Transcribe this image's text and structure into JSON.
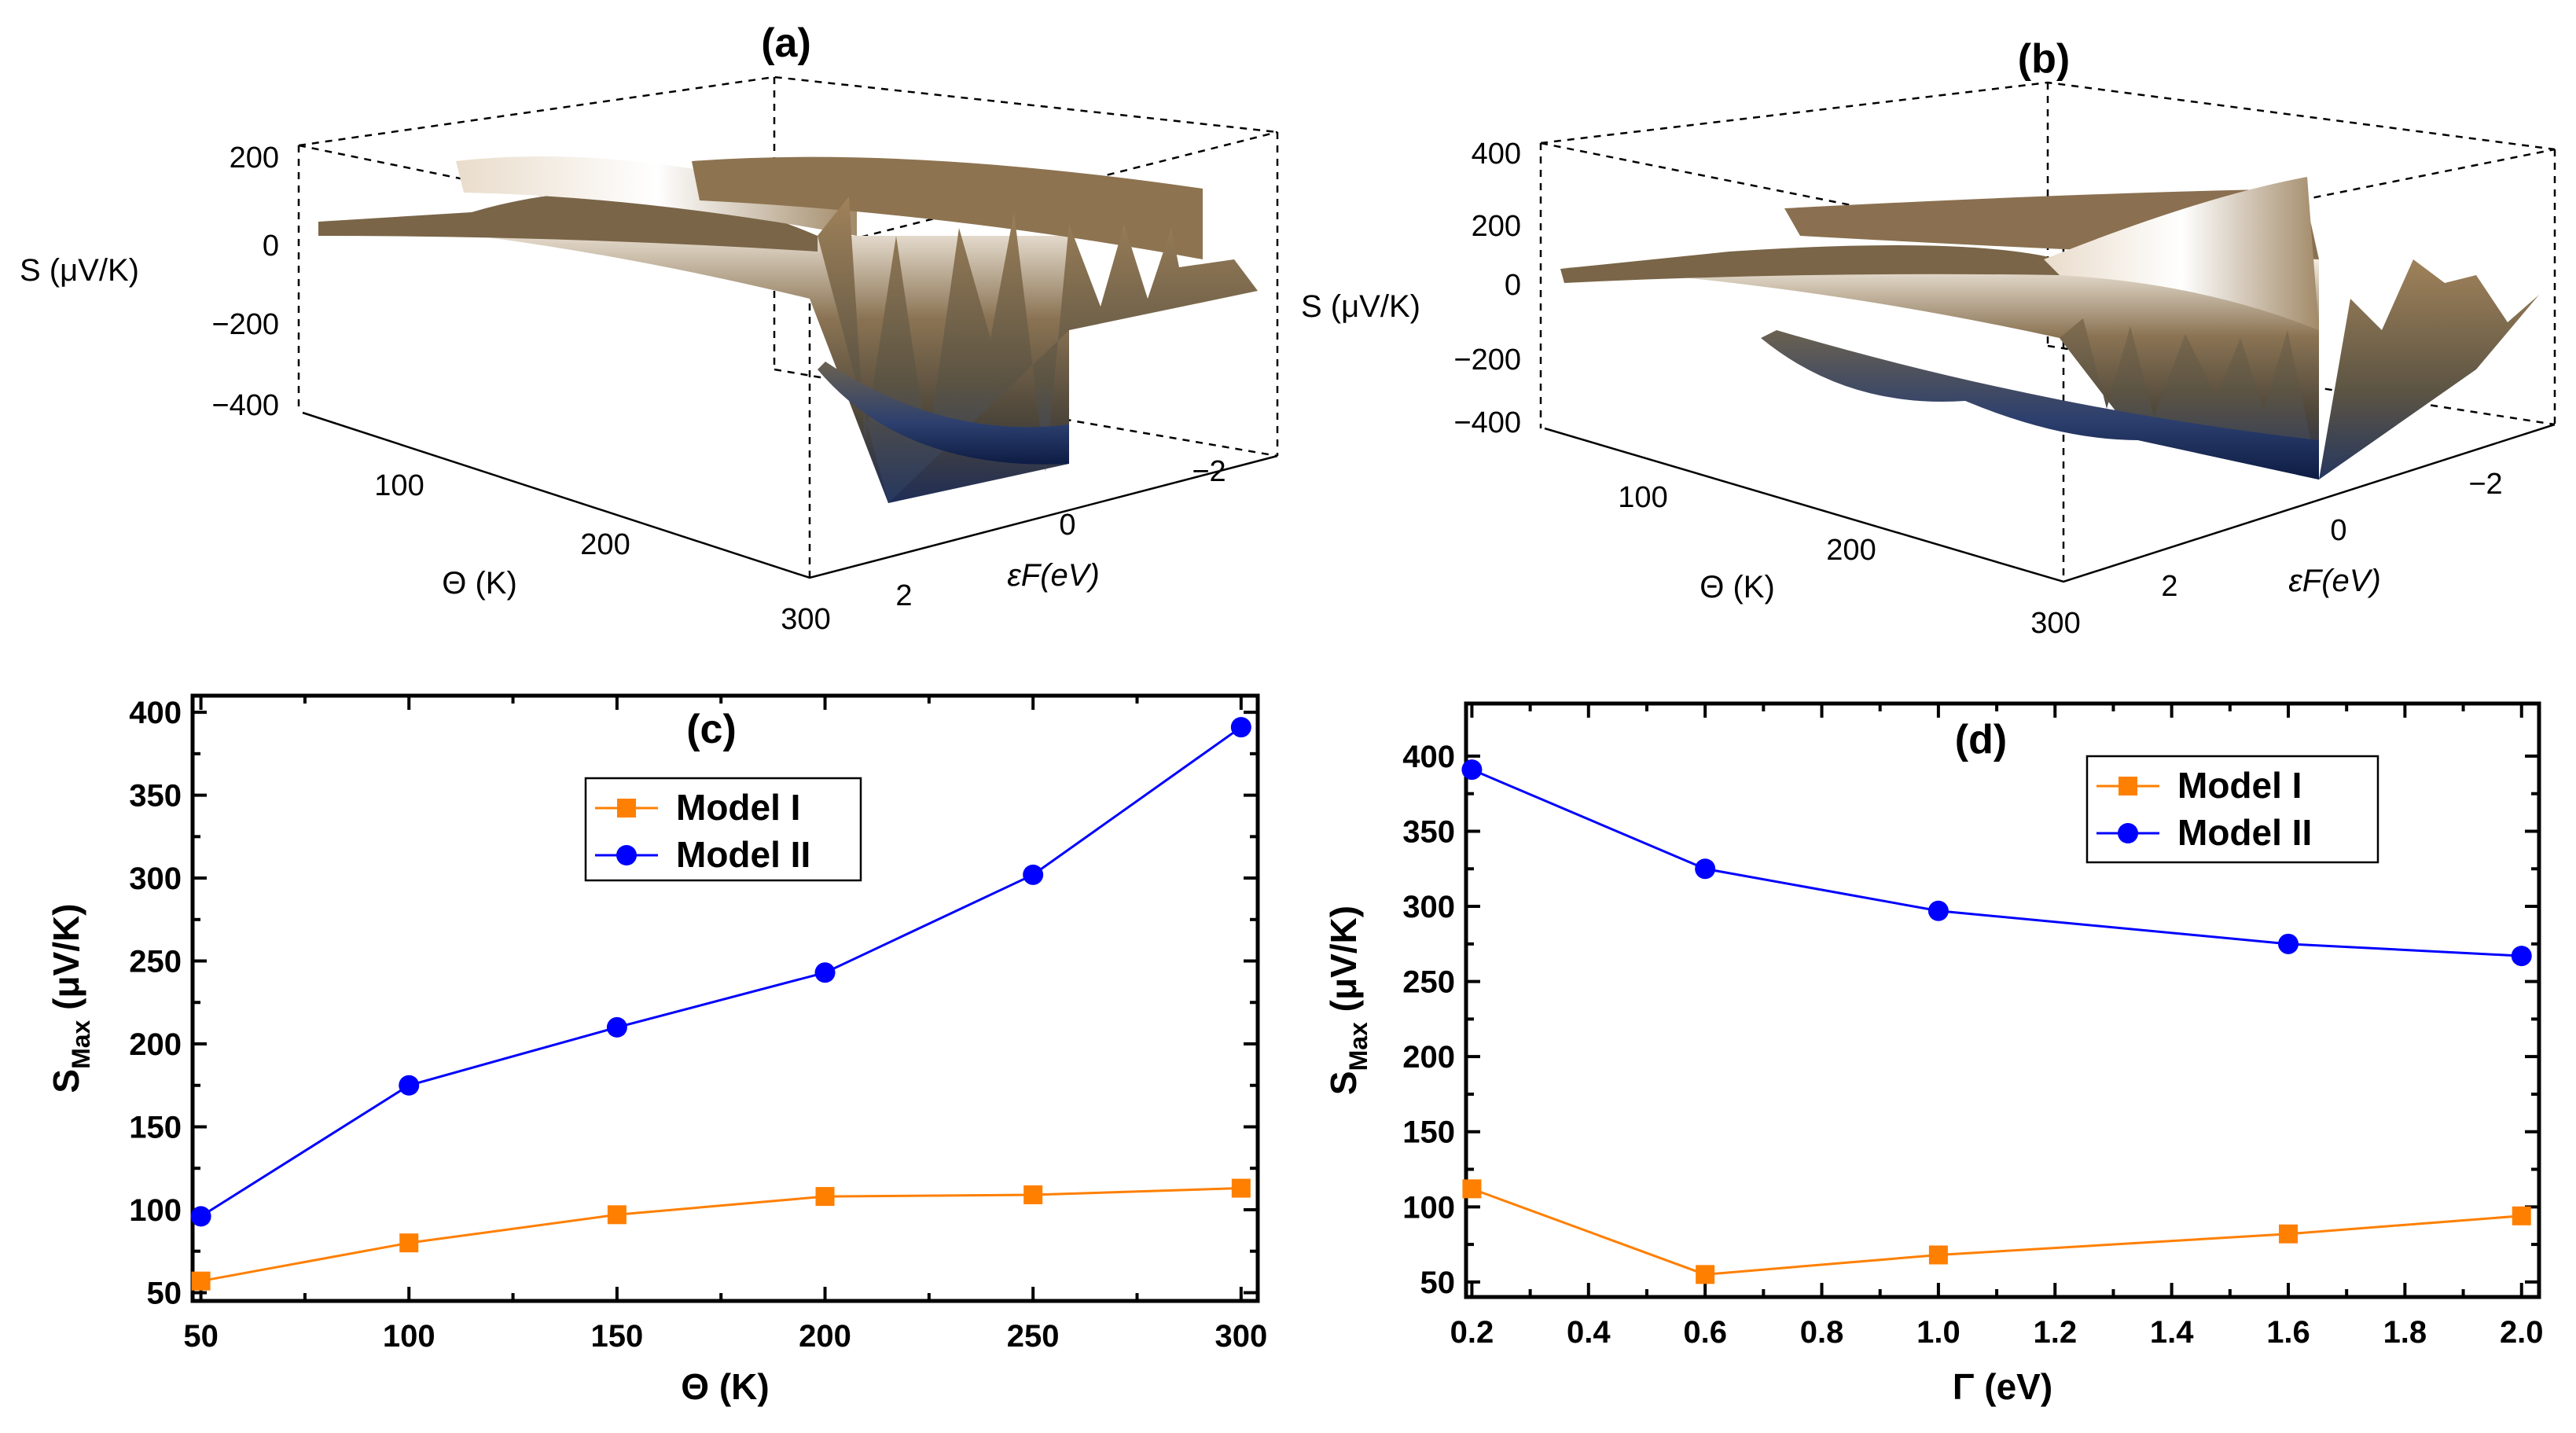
{
  "panels": {
    "a": "(a)",
    "b": "(b)"
  },
  "surface_a": {
    "z_label": "S (μV/K)",
    "theta_label": "Θ (K)",
    "ef_label": "εF(eV)",
    "z_ticks": [
      "200",
      "0",
      "−200",
      "−400"
    ],
    "theta_ticks": [
      "100",
      "200",
      "300"
    ],
    "ef_ticks": [
      "2",
      "0",
      "−2"
    ]
  },
  "surface_b": {
    "z_label": "S (μV/K)",
    "theta_label": "Θ (K)",
    "ef_label": "εF(eV)",
    "z_ticks": [
      "400",
      "200",
      "0",
      "−200",
      "−400"
    ],
    "theta_ticks": [
      "100",
      "200",
      "300"
    ],
    "ef_ticks": [
      "2",
      "0",
      "−2"
    ]
  },
  "chart_data": [
    {
      "panel": "(c)",
      "type": "line",
      "xlabel": "Θ (K)",
      "ylabel_main": "S",
      "ylabel_sub": "Max",
      "ylabel_unit": "(μV/K)",
      "xlim": [
        48,
        304
      ],
      "ylim": [
        45,
        410
      ],
      "xticks": [
        50,
        100,
        150,
        200,
        250,
        300
      ],
      "yticks": [
        50,
        100,
        150,
        200,
        250,
        300,
        350,
        400
      ],
      "legend_position": "top-center",
      "series": [
        {
          "name": "Model I",
          "color": "#FF7F00",
          "marker": "square",
          "x": [
            50,
            100,
            150,
            200,
            250,
            300
          ],
          "y": [
            57,
            80,
            97,
            108,
            109,
            113
          ]
        },
        {
          "name": "Model II",
          "color": "#0000FF",
          "marker": "circle",
          "x": [
            50,
            100,
            150,
            200,
            250,
            300
          ],
          "y": [
            96,
            175,
            210,
            243,
            302,
            391
          ]
        }
      ]
    },
    {
      "panel": "(d)",
      "type": "line",
      "xlabel": "Γ (eV)",
      "ylabel_main": "S",
      "ylabel_sub": "Max",
      "ylabel_unit": "(μV/K)",
      "xlim": [
        0.19,
        2.03
      ],
      "ylim": [
        40,
        435
      ],
      "xticks": [
        0.2,
        0.4,
        0.6,
        0.8,
        1.0,
        1.2,
        1.4,
        1.6,
        1.8,
        2.0
      ],
      "xtick_labels": [
        "0.2",
        "0.4",
        "0.6",
        "0.8",
        "1.0",
        "1.2",
        "1.4",
        "1.6",
        "1.8",
        "2.0"
      ],
      "yticks": [
        50,
        100,
        150,
        200,
        250,
        300,
        350,
        400
      ],
      "legend_position": "top-right",
      "series": [
        {
          "name": "Model I",
          "color": "#FF7F00",
          "marker": "square",
          "x": [
            0.2,
            0.6,
            1.0,
            1.6,
            2.0
          ],
          "y": [
            112,
            55,
            68,
            82,
            94
          ]
        },
        {
          "name": "Model II",
          "color": "#0000FF",
          "marker": "circle",
          "x": [
            0.2,
            0.6,
            1.0,
            1.6,
            2.0
          ],
          "y": [
            391,
            325,
            297,
            275,
            267
          ]
        }
      ]
    }
  ]
}
